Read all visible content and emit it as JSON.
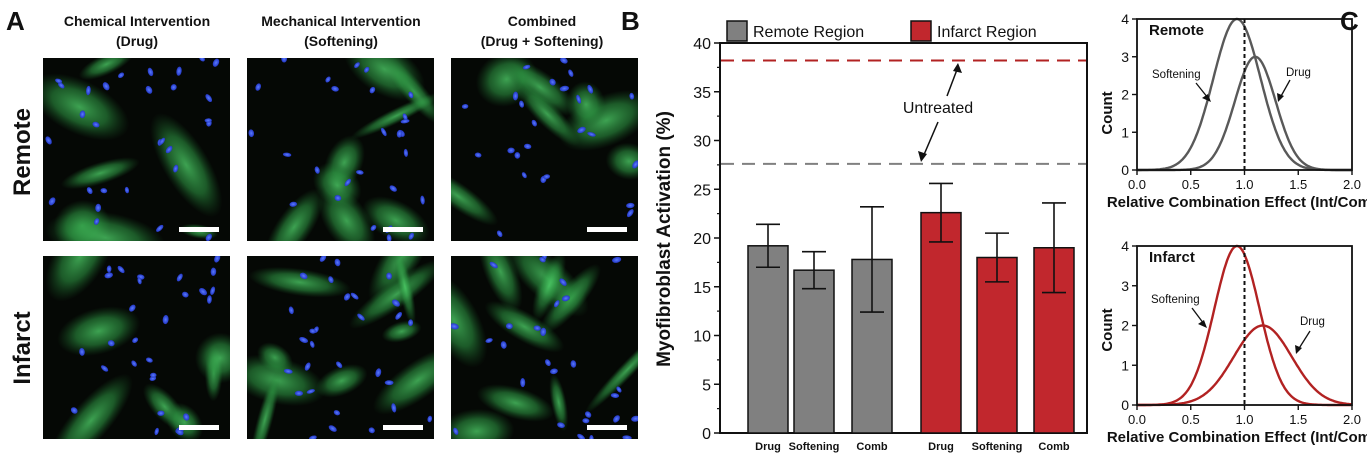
{
  "panel_a": {
    "letter": "A",
    "columns": [
      {
        "line1": "Chemical Intervention",
        "line2": "(Drug)"
      },
      {
        "line1": "Mechanical Intervention",
        "line2": "(Softening)"
      },
      {
        "line1": "Combined",
        "line2": "(Drug + Softening)"
      }
    ],
    "rows": [
      "Remote",
      "Infarct"
    ]
  },
  "panel_b": {
    "letter": "B",
    "legend": [
      "Remote Region",
      "Infarct Region"
    ],
    "annotation": "Untreated"
  },
  "panel_c": {
    "letter": "C",
    "top_label": "Remote",
    "bottom_label": "Infarct",
    "curve_labels": [
      "Softening",
      "Drug"
    ]
  },
  "chart_data": [
    {
      "type": "bar",
      "ylabel": "Myofibroblast Activation (%)",
      "ylim": [
        0,
        40
      ],
      "yticks": [
        0,
        5,
        10,
        15,
        20,
        25,
        30,
        35,
        40
      ],
      "groups": [
        "Remote Region",
        "Infarct Region"
      ],
      "categories": [
        "Drug",
        "Softening",
        "Comb"
      ],
      "series": [
        {
          "name": "Remote Region",
          "color": "#808080",
          "values": [
            19.2,
            16.7,
            17.8
          ],
          "errors": [
            2.2,
            1.9,
            5.4
          ]
        },
        {
          "name": "Infarct Region",
          "color": "#c1272d",
          "values": [
            22.6,
            18.0,
            19.0
          ],
          "errors": [
            3.0,
            2.5,
            4.6
          ]
        }
      ],
      "reference_lines": [
        {
          "series": "Remote Region",
          "value": 27.6,
          "color": "#808080",
          "style": "dashed"
        },
        {
          "series": "Infarct Region",
          "value": 38.2,
          "color": "#b22222",
          "style": "dashed"
        }
      ],
      "legend_position": "top"
    },
    {
      "type": "line",
      "panel": "Remote",
      "xlabel": "Relative Combination Effect (Int/Comb)",
      "ylabel": "Count",
      "xlim": [
        0,
        2
      ],
      "ylim": [
        0,
        4
      ],
      "xticks": [
        0.0,
        0.5,
        1.0,
        1.5,
        2.0
      ],
      "yticks": [
        0,
        1,
        2,
        3,
        4
      ],
      "reference_x": 1.0,
      "color": "#595959",
      "series": [
        {
          "name": "Softening",
          "peak_x": 0.93,
          "peak_count": 4.0,
          "sd": 0.22
        },
        {
          "name": "Drug",
          "peak_x": 1.1,
          "peak_count": 3.0,
          "sd": 0.19
        }
      ]
    },
    {
      "type": "line",
      "panel": "Infarct",
      "xlabel": "Relative Combination Effect (Int/Comb)",
      "ylabel": "Count",
      "xlim": [
        0,
        2
      ],
      "ylim": [
        0,
        4
      ],
      "xticks": [
        0.0,
        0.5,
        1.0,
        1.5,
        2.0
      ],
      "yticks": [
        0,
        1,
        2,
        3,
        4
      ],
      "reference_x": 1.0,
      "color": "#b22222",
      "series": [
        {
          "name": "Softening",
          "peak_x": 0.93,
          "peak_count": 4.0,
          "sd": 0.21
        },
        {
          "name": "Drug",
          "peak_x": 1.17,
          "peak_count": 2.0,
          "sd": 0.27
        }
      ]
    }
  ]
}
